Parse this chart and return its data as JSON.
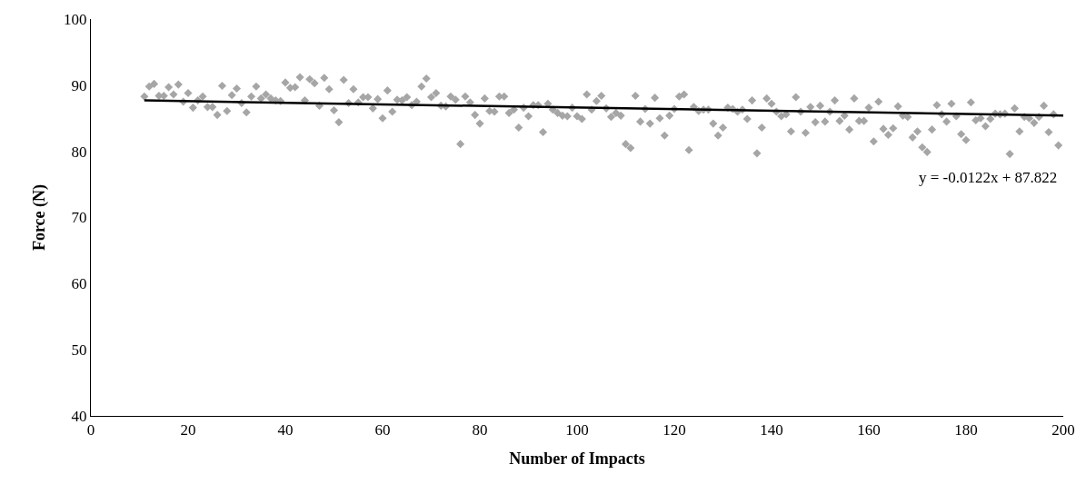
{
  "chart_data": {
    "type": "scatter",
    "xlabel": "Number of Impacts",
    "ylabel": "Force (N)",
    "xlim": [
      0,
      200
    ],
    "xticks": [
      0,
      20,
      40,
      60,
      80,
      100,
      120,
      140,
      160,
      180,
      200
    ],
    "ylim": [
      40,
      100
    ],
    "yticks": [
      40,
      50,
      60,
      70,
      80,
      90,
      100
    ],
    "legend": false,
    "marker": "diamond",
    "annotations": [
      "y = -0.0122x + 87.822"
    ],
    "series": [
      {
        "color": "#a6a6a6",
        "x": [
          11,
          12,
          13,
          14,
          15,
          16,
          17,
          18,
          19,
          20,
          21,
          22,
          23,
          24,
          25,
          26,
          27,
          28,
          29,
          30,
          31,
          32,
          33,
          34,
          35,
          36,
          37,
          38,
          39,
          40,
          41,
          42,
          43,
          44,
          45,
          46,
          47,
          48,
          49,
          50,
          51,
          52,
          53,
          54,
          55,
          56,
          57,
          58,
          59,
          60,
          61,
          62,
          63,
          64,
          65,
          66,
          67,
          68,
          69,
          70,
          71,
          72,
          73,
          74,
          75,
          76,
          77,
          78,
          79,
          80,
          81,
          82,
          83,
          84,
          85,
          86,
          87,
          88,
          89,
          90,
          91,
          92,
          93,
          94,
          95,
          96,
          97,
          98,
          99,
          100,
          101,
          102,
          103,
          104,
          105,
          106,
          107,
          108,
          109,
          110,
          111,
          112,
          113,
          114,
          115,
          116,
          117,
          118,
          119,
          120,
          121,
          122,
          123,
          124,
          125,
          126,
          127,
          128,
          129,
          130,
          131,
          132,
          133,
          134,
          135,
          136,
          137,
          138,
          139,
          140,
          141,
          142,
          143,
          144,
          145,
          146,
          147,
          148,
          149,
          150,
          151,
          152,
          153,
          154,
          155,
          156,
          157,
          158,
          159,
          160,
          161,
          162,
          163,
          164,
          165,
          166,
          167,
          168,
          169,
          170,
          171,
          172,
          173,
          174,
          175,
          176,
          177,
          178,
          179,
          180,
          181,
          182,
          183,
          184,
          185,
          186,
          187,
          188,
          189,
          190,
          191,
          192,
          193,
          194,
          195,
          196,
          197,
          198,
          199
        ],
        "values": [
          88.3,
          89.8,
          90.2,
          88.4,
          88.4,
          89.7,
          88.6,
          90.1,
          87.5,
          88.8,
          86.6,
          87.7,
          88.3,
          86.7,
          86.7,
          85.5,
          89.9,
          86.1,
          88.5,
          89.5,
          87.3,
          85.9,
          88.3,
          89.8,
          88.0,
          88.6,
          88.0,
          87.7,
          87.6,
          90.4,
          89.6,
          89.7,
          91.2,
          87.7,
          90.9,
          90.3,
          86.9,
          91.1,
          89.4,
          86.2,
          84.4,
          90.8,
          87.3,
          89.4,
          87.4,
          88.2,
          88.2,
          86.5,
          87.9,
          85.0,
          89.2,
          86.0,
          87.8,
          87.7,
          88.2,
          87.0,
          87.5,
          89.8,
          91.0,
          88.2,
          88.8,
          86.9,
          86.8,
          88.3,
          87.8,
          81.1,
          88.3,
          87.4,
          85.5,
          84.2,
          88.0,
          86.1,
          86.0,
          88.3,
          88.3,
          85.8,
          86.3,
          83.6,
          86.6,
          85.3,
          87.0,
          87.0,
          82.9,
          87.2,
          86.3,
          85.8,
          85.4,
          85.3,
          86.6,
          85.3,
          84.9,
          88.6,
          86.3,
          87.6,
          88.4,
          86.5,
          85.2,
          85.8,
          85.4,
          81.1,
          80.5,
          88.4,
          84.5,
          86.4,
          84.2,
          88.1,
          85.0,
          82.4,
          85.4,
          86.4,
          88.3,
          88.6,
          80.2,
          86.7,
          86.1,
          86.3,
          86.3,
          84.2,
          82.4,
          83.6,
          86.6,
          86.4,
          86.0,
          86.3,
          84.9,
          87.7,
          79.7,
          83.6,
          88.0,
          87.2,
          86.0,
          85.3,
          85.6,
          83.0,
          88.2,
          86.0,
          82.8,
          86.7,
          84.4,
          86.9,
          84.5,
          86.0,
          87.7,
          84.6,
          85.4,
          83.3,
          88.0,
          84.6,
          84.6,
          86.6,
          81.5,
          87.5,
          83.4,
          82.5,
          83.5,
          86.8,
          85.4,
          85.2,
          82.1,
          83.0,
          80.6,
          79.9,
          83.3,
          87.0,
          85.6,
          84.5,
          87.2,
          85.3,
          82.6,
          81.7,
          87.4,
          84.7,
          85.0,
          83.8,
          84.9,
          85.7,
          85.6,
          85.7,
          79.6,
          86.5,
          83.0,
          85.2,
          85.0,
          84.3,
          85.2,
          86.9,
          82.9,
          85.6,
          80.9
        ]
      },
      {
        "type": "line",
        "color": "#000000",
        "marker": "none",
        "line_style": "solid",
        "x": [
          11,
          200
        ],
        "values": [
          87.7,
          85.4
        ]
      }
    ]
  }
}
